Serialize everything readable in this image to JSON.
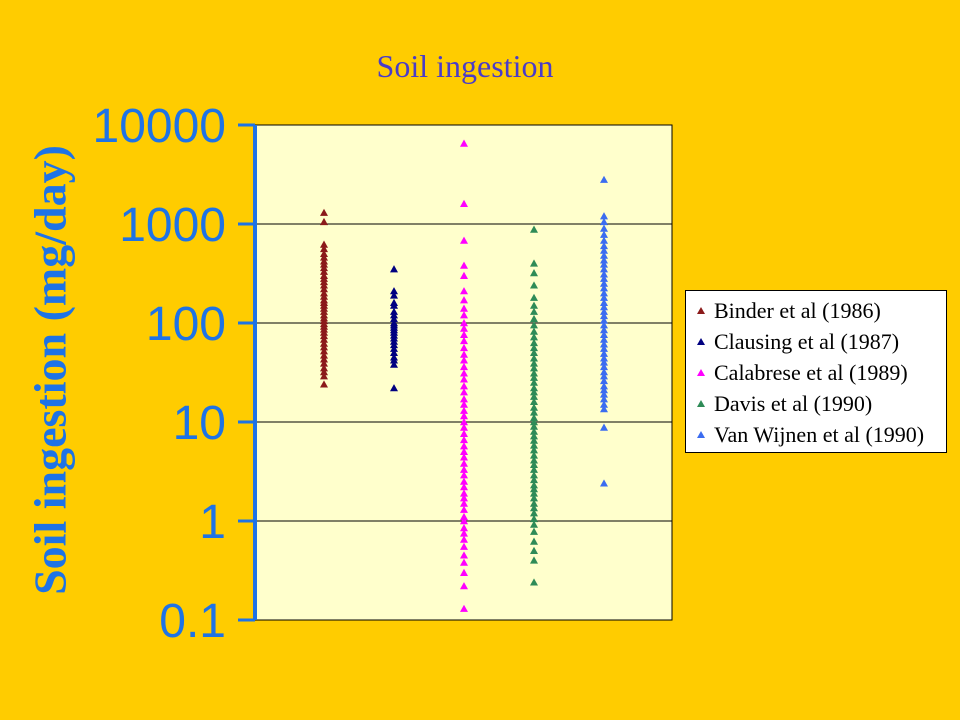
{
  "chart_data": {
    "type": "scatter",
    "title": "Soil ingestion",
    "ylabel": "Soil ingestion (mg/day)",
    "xlabel": "",
    "y_scale": "log",
    "ylim": [
      0.1,
      10000
    ],
    "y_ticks": [
      0.1,
      1,
      10,
      100,
      1000,
      10000
    ],
    "y_tick_labels": [
      "0.1",
      "1",
      "10",
      "100",
      "1000",
      "10000"
    ],
    "grid": true,
    "legend_position": "right",
    "plot_background": "#FFFFCC",
    "series": [
      {
        "name": "Binder et al (1986)",
        "color": "#8B1A1A",
        "values": [
          1300,
          1050,
          620,
          560,
          500,
          460,
          420,
          390,
          360,
          330,
          300,
          280,
          260,
          240,
          220,
          200,
          185,
          170,
          160,
          150,
          140,
          130,
          120,
          112,
          105,
          98,
          92,
          86,
          80,
          74,
          68,
          62,
          57,
          52,
          47,
          43,
          39,
          35,
          32,
          29,
          24
        ]
      },
      {
        "name": "Clausing et al (1987)",
        "color": "#000080",
        "values": [
          350,
          210,
          190,
          160,
          150,
          130,
          120,
          110,
          100,
          95,
          90,
          85,
          80,
          75,
          70,
          65,
          60,
          55,
          50,
          45,
          42,
          38,
          22
        ]
      },
      {
        "name": "Calabrese et al (1989)",
        "color": "#FF00FF",
        "values": [
          6500,
          1600,
          680,
          380,
          300,
          210,
          170,
          140,
          120,
          100,
          88,
          76,
          66,
          56,
          48,
          42,
          36,
          31,
          27,
          23,
          20,
          17,
          15,
          13,
          11.5,
          10,
          8.8,
          7.6,
          6.6,
          5.7,
          5,
          4.4,
          3.8,
          3.3,
          2.9,
          2.5,
          2.2,
          1.9,
          1.7,
          1.5,
          1.3,
          1.1,
          1,
          0.85,
          0.75,
          0.65,
          0.55,
          0.45,
          0.38,
          0.3,
          0.22,
          0.13
        ]
      },
      {
        "name": "Davis et al (1990)",
        "color": "#2E8B57",
        "values": [
          880,
          400,
          320,
          240,
          180,
          150,
          130,
          110,
          95,
          82,
          72,
          63,
          56,
          50,
          44,
          39,
          35,
          31,
          28,
          25,
          22,
          20,
          18,
          16,
          14,
          12.5,
          11,
          10,
          9,
          8,
          7.2,
          6.5,
          5.8,
          5.2,
          4.6,
          4.1,
          3.7,
          3.3,
          2.9,
          2.6,
          2.3,
          2.1,
          1.9,
          1.7,
          1.5,
          1.35,
          1.2,
          1.05,
          0.92,
          0.78,
          0.62,
          0.5,
          0.4,
          0.24
        ]
      },
      {
        "name": "Van Wijnen et al (1990)",
        "color": "#3B6CF0",
        "values": [
          2800,
          1200,
          1050,
          900,
          780,
          680,
          600,
          540,
          480,
          430,
          390,
          350,
          310,
          280,
          250,
          225,
          200,
          180,
          160,
          145,
          130,
          118,
          106,
          95,
          85,
          76,
          68,
          61,
          55,
          49,
          44,
          40,
          36,
          32,
          29,
          26,
          23,
          21,
          19,
          17,
          15,
          13.5,
          8.8,
          2.4
        ]
      }
    ]
  }
}
